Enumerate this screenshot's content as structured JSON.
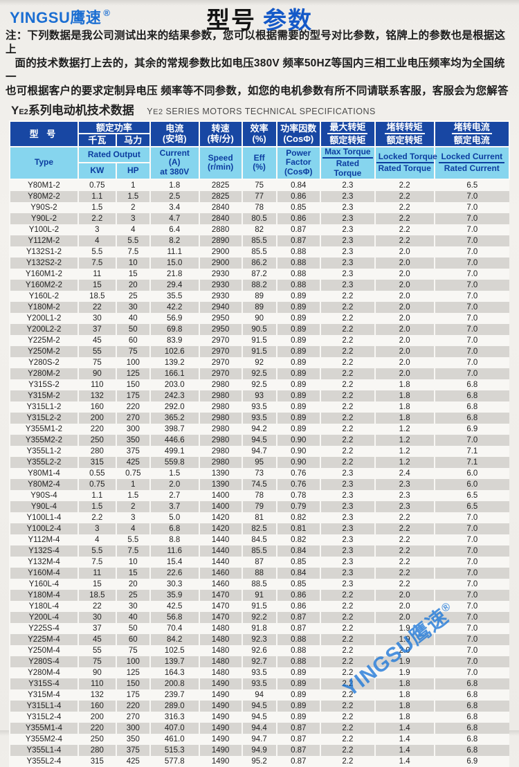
{
  "page": {
    "logo": "YINGSU鹰速",
    "registered": "®",
    "title_black": "型号",
    "title_blue": "参数",
    "notes": [
      "注：下列数据是我公司测试出来的结果参数，您可以根据需要的型号对比参数，铭牌上的参数也是根据这上",
      "   面的技术数据打上去的，其余的常规参数比如电压380V 频率50HZ等国内三相工业电压频率均为全国统一",
      "也可根据客户的要求定制异电压 频率等不同参数，如您的电机参数有所不同请联系客服，客服会为您解答"
    ],
    "section_zh_prefix": "Y",
    "section_zh_sub": "E2",
    "section_zh_rest": "系列电动机技术数据",
    "section_en_prefix": "Y",
    "section_en_sub": "E2",
    "section_en_rest": " SERIES MOTORS TECHNICAL SPECIFICATIONS",
    "watermark": "YINGSU鹰速"
  },
  "colors": {
    "header_dark_blue": "#1847a3",
    "header_light_blue": "#86d5ee",
    "header_light_text": "#0c3da0",
    "stripe_gray": "#d7d5d1",
    "brand_blue": "#1b6ed2",
    "title_blue": "#1459c8",
    "watermark_blue": "#1b76d7"
  },
  "table": {
    "header": {
      "type_zh": "型  号",
      "rated_output_zh": "额定功率",
      "kw_zh": "千瓦",
      "hp_zh": "马力",
      "current_zh": [
        "电流",
        "(安培)"
      ],
      "speed_zh": [
        "转速",
        "(转/分)"
      ],
      "eff_zh": [
        "效率",
        "(%)"
      ],
      "pf_zh": [
        "功率因数",
        "(CosΦ)"
      ],
      "max_torque_zh": [
        "最大转矩",
        "额定转矩"
      ],
      "locked_torque_zh": [
        "堵转转矩",
        "额定转矩"
      ],
      "locked_current_zh": [
        "堵转电流",
        "额定电流"
      ],
      "type_en": "Type",
      "rated_output_en": "Rated Output",
      "kw_en": "KW",
      "hp_en": "HP",
      "current_en": [
        "Current",
        "(A)",
        "at 380V"
      ],
      "speed_en": [
        "Speed",
        "(r/min)"
      ],
      "eff_en": [
        "Eff",
        "(%)"
      ],
      "pf_en": [
        "Power",
        "Factor",
        "(CosΦ)"
      ],
      "max_torque_en": [
        "Max  Torque",
        "Rated Torque"
      ],
      "locked_torque_en": [
        "Locked Torque",
        "Rated Torque"
      ],
      "locked_current_en": [
        "Locked Current",
        "Rated Current"
      ]
    },
    "rows": [
      [
        "Y80M1-2",
        "0.75",
        "1",
        "1.8",
        "2825",
        "75",
        "0.84",
        "2.3",
        "2.2",
        "6.5"
      ],
      [
        "Y80M2-2",
        "1.1",
        "1.5",
        "2.5",
        "2825",
        "77",
        "0.86",
        "2.3",
        "2.2",
        "7.0"
      ],
      [
        "Y90S-2",
        "1.5",
        "2",
        "3.4",
        "2840",
        "78",
        "0.85",
        "2.3",
        "2.2",
        "7.0"
      ],
      [
        "Y90L-2",
        "2.2",
        "3",
        "4.7",
        "2840",
        "80.5",
        "0.86",
        "2.3",
        "2.2",
        "7.0"
      ],
      [
        "Y100L-2",
        "3",
        "4",
        "6.4",
        "2880",
        "82",
        "0.87",
        "2.3",
        "2.2",
        "7.0"
      ],
      [
        "Y112M-2",
        "4",
        "5.5",
        "8.2",
        "2890",
        "85.5",
        "0.87",
        "2.3",
        "2.2",
        "7.0"
      ],
      [
        "Y132S1-2",
        "5.5",
        "7.5",
        "11.1",
        "2900",
        "85.5",
        "0.88",
        "2.3",
        "2.0",
        "7.0"
      ],
      [
        "Y132S2-2",
        "7.5",
        "10",
        "15.0",
        "2900",
        "86.2",
        "0.88",
        "2.3",
        "2.0",
        "7.0"
      ],
      [
        "Y160M1-2",
        "11",
        "15",
        "21.8",
        "2930",
        "87.2",
        "0.88",
        "2.3",
        "2.0",
        "7.0"
      ],
      [
        "Y160M2-2",
        "15",
        "20",
        "29.4",
        "2930",
        "88.2",
        "0.88",
        "2.3",
        "2.0",
        "7.0"
      ],
      [
        "Y160L-2",
        "18.5",
        "25",
        "35.5",
        "2930",
        "89",
        "0.89",
        "2.2",
        "2.0",
        "7.0"
      ],
      [
        "Y180M-2",
        "22",
        "30",
        "42.2",
        "2940",
        "89",
        "0.89",
        "2.2",
        "2.0",
        "7.0"
      ],
      [
        "Y200L1-2",
        "30",
        "40",
        "56.9",
        "2950",
        "90",
        "0.89",
        "2.2",
        "2.0",
        "7.0"
      ],
      [
        "Y200L2-2",
        "37",
        "50",
        "69.8",
        "2950",
        "90.5",
        "0.89",
        "2.2",
        "2.0",
        "7.0"
      ],
      [
        "Y225M-2",
        "45",
        "60",
        "83.9",
        "2970",
        "91.5",
        "0.89",
        "2.2",
        "2.0",
        "7.0"
      ],
      [
        "Y250M-2",
        "55",
        "75",
        "102.6",
        "2970",
        "91.5",
        "0.89",
        "2.2",
        "2.0",
        "7.0"
      ],
      [
        "Y280S-2",
        "75",
        "100",
        "139.2",
        "2970",
        "92",
        "0.89",
        "2.2",
        "2.0",
        "7.0"
      ],
      [
        "Y280M-2",
        "90",
        "125",
        "166.1",
        "2970",
        "92.5",
        "0.89",
        "2.2",
        "2.0",
        "7.0"
      ],
      [
        "Y315S-2",
        "110",
        "150",
        "203.0",
        "2980",
        "92.5",
        "0.89",
        "2.2",
        "1.8",
        "6.8"
      ],
      [
        "Y315M-2",
        "132",
        "175",
        "242.3",
        "2980",
        "93",
        "0.89",
        "2.2",
        "1.8",
        "6.8"
      ],
      [
        "Y315L1-2",
        "160",
        "220",
        "292.0",
        "2980",
        "93.5",
        "0.89",
        "2.2",
        "1.8",
        "6.8"
      ],
      [
        "Y315L2-2",
        "200",
        "270",
        "365.2",
        "2980",
        "93.5",
        "0.89",
        "2.2",
        "1.8",
        "6.8"
      ],
      [
        "Y355M1-2",
        "220",
        "300",
        "398.7",
        "2980",
        "94.2",
        "0.89",
        "2.2",
        "1.2",
        "6.9"
      ],
      [
        "Y355M2-2",
        "250",
        "350",
        "446.6",
        "2980",
        "94.5",
        "0.90",
        "2.2",
        "1.2",
        "7.0"
      ],
      [
        "Y355L1-2",
        "280",
        "375",
        "499.1",
        "2980",
        "94.7",
        "0.90",
        "2.2",
        "1.2",
        "7.1"
      ],
      [
        "Y355L2-2",
        "315",
        "425",
        "559.8",
        "2980",
        "95",
        "0.90",
        "2.2",
        "1.2",
        "7.1"
      ],
      [
        "Y80M1-4",
        "0.55",
        "0.75",
        "1.5",
        "1390",
        "73",
        "0.76",
        "2.3",
        "2.4",
        "6.0"
      ],
      [
        "Y80M2-4",
        "0.75",
        "1",
        "2.0",
        "1390",
        "74.5",
        "0.76",
        "2.3",
        "2.3",
        "6.0"
      ],
      [
        "Y90S-4",
        "1.1",
        "1.5",
        "2.7",
        "1400",
        "78",
        "0.78",
        "2.3",
        "2.3",
        "6.5"
      ],
      [
        "Y90L-4",
        "1.5",
        "2",
        "3.7",
        "1400",
        "79",
        "0.79",
        "2.3",
        "2.3",
        "6.5"
      ],
      [
        "Y100L1-4",
        "2.2",
        "3",
        "5.0",
        "1420",
        "81",
        "0.82",
        "2.3",
        "2.2",
        "7.0"
      ],
      [
        "Y100L2-4",
        "3",
        "4",
        "6.8",
        "1420",
        "82.5",
        "0.81",
        "2.3",
        "2.2",
        "7.0"
      ],
      [
        "Y112M-4",
        "4",
        "5.5",
        "8.8",
        "1440",
        "84.5",
        "0.82",
        "2.3",
        "2.2",
        "7.0"
      ],
      [
        "Y132S-4",
        "5.5",
        "7.5",
        "11.6",
        "1440",
        "85.5",
        "0.84",
        "2.3",
        "2.2",
        "7.0"
      ],
      [
        "Y132M-4",
        "7.5",
        "10",
        "15.4",
        "1440",
        "87",
        "0.85",
        "2.3",
        "2.2",
        "7.0"
      ],
      [
        "Y160M-4",
        "11",
        "15",
        "22.6",
        "1460",
        "88",
        "0.84",
        "2.3",
        "2.2",
        "7.0"
      ],
      [
        "Y160L-4",
        "15",
        "20",
        "30.3",
        "1460",
        "88.5",
        "0.85",
        "2.3",
        "2.2",
        "7.0"
      ],
      [
        "Y180M-4",
        "18.5",
        "25",
        "35.9",
        "1470",
        "91",
        "0.86",
        "2.2",
        "2.0",
        "7.0"
      ],
      [
        "Y180L-4",
        "22",
        "30",
        "42.5",
        "1470",
        "91.5",
        "0.86",
        "2.2",
        "2.0",
        "7.0"
      ],
      [
        "Y200L-4",
        "30",
        "40",
        "56.8",
        "1470",
        "92.2",
        "0.87",
        "2.2",
        "2.0",
        "7.0"
      ],
      [
        "Y225S-4",
        "37",
        "50",
        "70.4",
        "1480",
        "91.8",
        "0.87",
        "2.2",
        "1.9",
        "7.0"
      ],
      [
        "Y225M-4",
        "45",
        "60",
        "84.2",
        "1480",
        "92.3",
        "0.88",
        "2.2",
        "1.9",
        "7.0"
      ],
      [
        "Y250M-4",
        "55",
        "75",
        "102.5",
        "1480",
        "92.6",
        "0.88",
        "2.2",
        "2.0",
        "7.0"
      ],
      [
        "Y280S-4",
        "75",
        "100",
        "139.7",
        "1480",
        "92.7",
        "0.88",
        "2.2",
        "1.9",
        "7.0"
      ],
      [
        "Y280M-4",
        "90",
        "125",
        "164.3",
        "1480",
        "93.5",
        "0.89",
        "2.2",
        "1.9",
        "7.0"
      ],
      [
        "Y315S-4",
        "110",
        "150",
        "200.8",
        "1490",
        "93.5",
        "0.89",
        "2.2",
        "1.8",
        "6.8"
      ],
      [
        "Y315M-4",
        "132",
        "175",
        "239.7",
        "1490",
        "94",
        "0.89",
        "2.2",
        "1.8",
        "6.8"
      ],
      [
        "Y315L1-4",
        "160",
        "220",
        "289.0",
        "1490",
        "94.5",
        "0.89",
        "2.2",
        "1.8",
        "6.8"
      ],
      [
        "Y315L2-4",
        "200",
        "270",
        "316.3",
        "1490",
        "94.5",
        "0.89",
        "2.2",
        "1.8",
        "6.8"
      ],
      [
        "Y355M1-4",
        "220",
        "300",
        "407.0",
        "1490",
        "94.4",
        "0.87",
        "2.2",
        "1.4",
        "6.8"
      ],
      [
        "Y355M2-4",
        "250",
        "350",
        "461.0",
        "1490",
        "94.7",
        "0.87",
        "2.2",
        "1.4",
        "6.8"
      ],
      [
        "Y355L1-4",
        "280",
        "375",
        "515.3",
        "1490",
        "94.9",
        "0.87",
        "2.2",
        "1.4",
        "6.8"
      ],
      [
        "Y355L2-4",
        "315",
        "425",
        "577.8",
        "1490",
        "95.2",
        "0.87",
        "2.2",
        "1.4",
        "6.9"
      ]
    ]
  }
}
